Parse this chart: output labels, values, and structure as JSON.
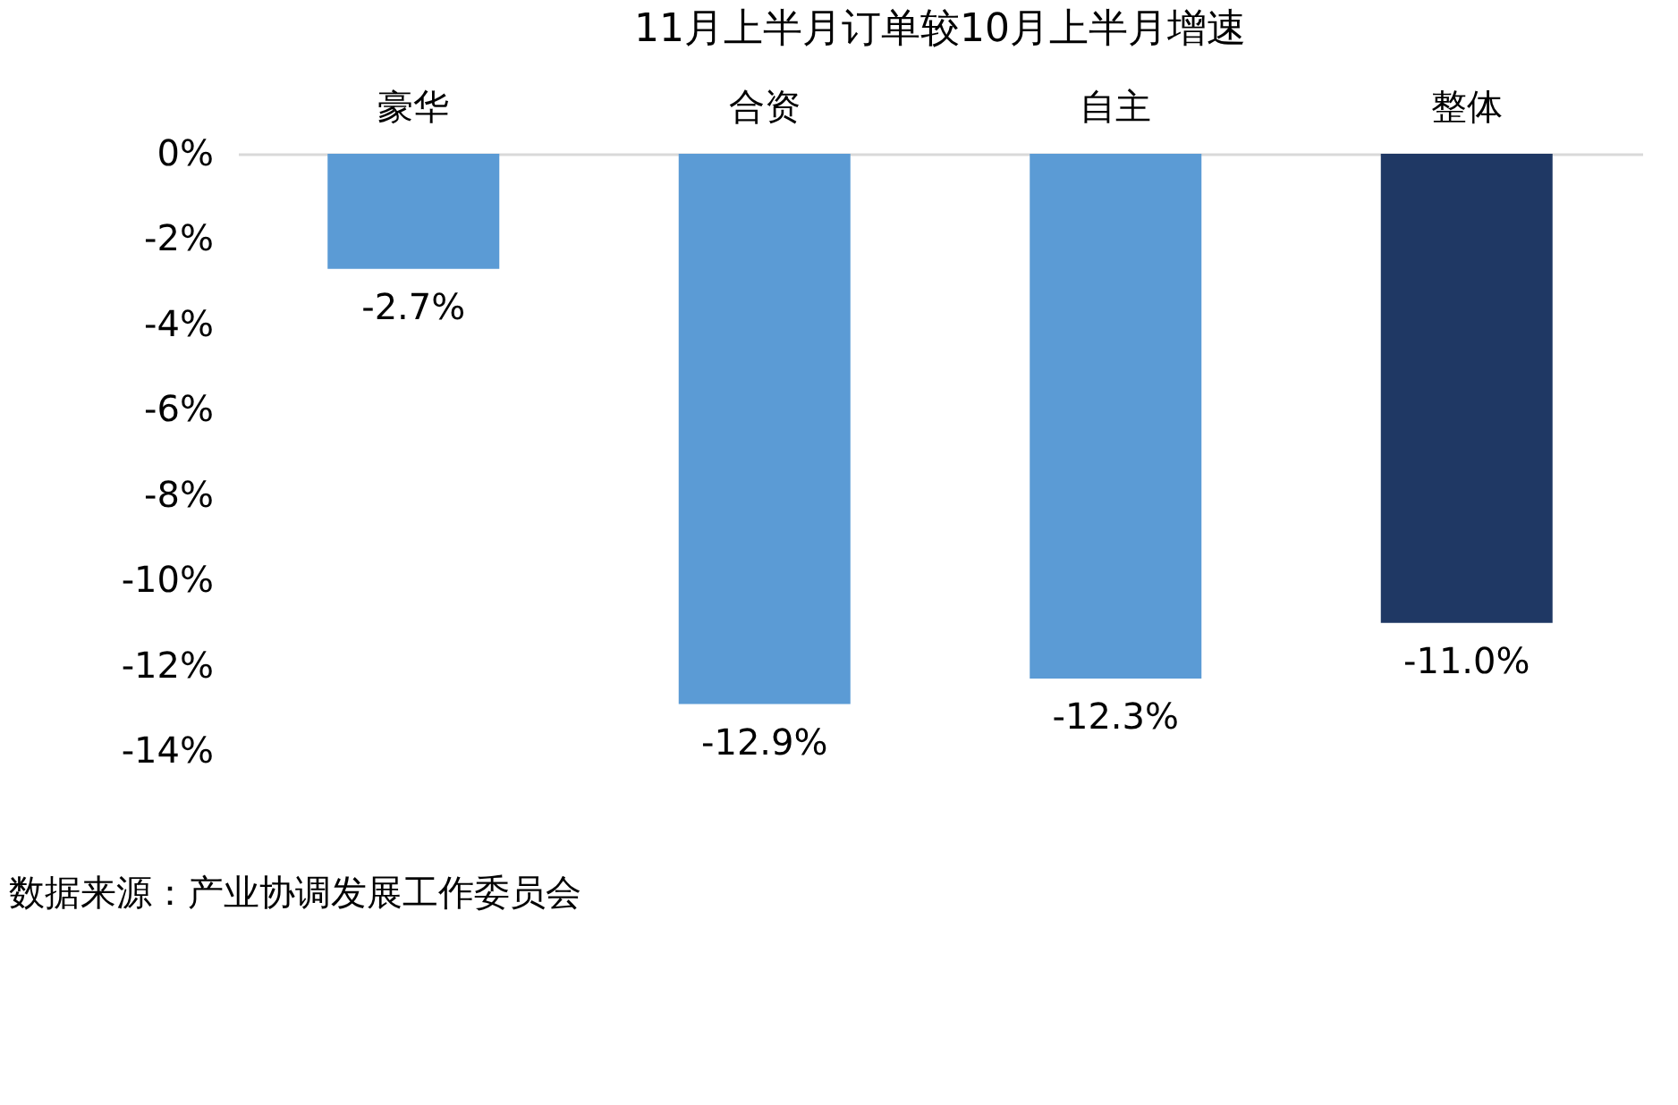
{
  "chart_data": {
    "type": "bar",
    "title": "11月上半月订单较10月上半月增速",
    "categories": [
      "豪华",
      "合资",
      "自主",
      "整体"
    ],
    "values": [
      -2.7,
      -12.9,
      -12.3,
      -11.0
    ],
    "colors": [
      "#5b9bd5",
      "#5b9bd5",
      "#5b9bd5",
      "#1f3864"
    ],
    "value_labels": [
      "-2.7%",
      "-12.9%",
      "-12.3%",
      "-11.0%"
    ],
    "ylim": [
      -14,
      0
    ],
    "yticks": [
      {
        "value": 0,
        "label": "0%"
      },
      {
        "value": -2,
        "label": "-2%"
      },
      {
        "value": -4,
        "label": "-4%"
      },
      {
        "value": -6,
        "label": "-6%"
      },
      {
        "value": -8,
        "label": "-8%"
      },
      {
        "value": -10,
        "label": "-10%"
      },
      {
        "value": -12,
        "label": "-12%"
      },
      {
        "value": -14,
        "label": "-14%"
      }
    ],
    "grid": false,
    "annotations": [
      "数据来源：产业协调发展工作委员会"
    ]
  }
}
